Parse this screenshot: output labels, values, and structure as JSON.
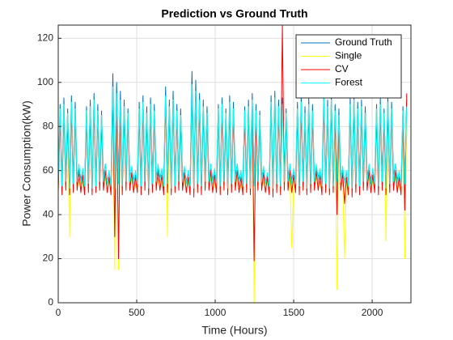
{
  "chart_data": {
    "type": "line",
    "title": "Prediction vs Ground Truth",
    "x_label": "Time (Hours)",
    "y_label": "Power Consumption(kW)",
    "xlim": [
      0,
      2247
    ],
    "ylim": [
      0,
      126
    ],
    "xticks": [
      0,
      500,
      1000,
      1500,
      2000
    ],
    "yticks": [
      0,
      20,
      40,
      60,
      80,
      100,
      120
    ],
    "grid": true,
    "legend": "northeast",
    "x": [
      0,
      12,
      24,
      36,
      48,
      60,
      72,
      84,
      96,
      108,
      120,
      132,
      144,
      156,
      168,
      180,
      192,
      204,
      216,
      228,
      240,
      252,
      264,
      276,
      288,
      300,
      312,
      324,
      336,
      348,
      360,
      372,
      384,
      396,
      408,
      420,
      432,
      444,
      456,
      468,
      480,
      492,
      504,
      516,
      528,
      540,
      552,
      564,
      576,
      588,
      600,
      612,
      624,
      636,
      648,
      660,
      672,
      684,
      696,
      708,
      720,
      732,
      744,
      756,
      768,
      780,
      792,
      804,
      816,
      828,
      840,
      852,
      864,
      876,
      888,
      900,
      912,
      924,
      936,
      948,
      960,
      972,
      984,
      996,
      1008,
      1020,
      1032,
      1044,
      1056,
      1068,
      1080,
      1092,
      1104,
      1116,
      1128,
      1140,
      1152,
      1164,
      1176,
      1188,
      1200,
      1212,
      1224,
      1236,
      1248,
      1260,
      1272,
      1284,
      1296,
      1308,
      1320,
      1332,
      1344,
      1356,
      1368,
      1380,
      1392,
      1404,
      1416,
      1428,
      1440,
      1452,
      1464,
      1476,
      1488,
      1500,
      1512,
      1524,
      1536,
      1548,
      1560,
      1572,
      1584,
      1596,
      1608,
      1620,
      1632,
      1644,
      1656,
      1668,
      1680,
      1692,
      1704,
      1716,
      1728,
      1740,
      1752,
      1764,
      1776,
      1788,
      1800,
      1812,
      1824,
      1836,
      1848,
      1860,
      1872,
      1884,
      1896,
      1908,
      1920,
      1932,
      1944,
      1956,
      1968,
      1980,
      1992,
      2004,
      2016,
      2028,
      2040,
      2052,
      2064,
      2076,
      2088,
      2100,
      2112,
      2124,
      2136,
      2148,
      2160,
      2172,
      2184,
      2196,
      2208,
      2220
    ],
    "series": [
      {
        "name": "Ground Truth",
        "color": "#0072bd",
        "values": [
          55,
          90,
          54,
          93,
          56,
          88,
          53,
          94,
          55,
          91,
          57,
          62,
          56,
          60,
          54,
          89,
          55,
          92,
          53,
          95,
          54,
          90,
          56,
          87,
          57,
          63,
          55,
          59,
          54,
          104,
          53,
          100,
          55,
          96,
          54,
          92,
          56,
          88,
          57,
          61,
          56,
          58,
          55,
          91,
          54,
          94,
          56,
          89,
          53,
          93,
          55,
          90,
          56,
          62,
          57,
          60,
          54,
          98,
          55,
          92,
          53,
          96,
          54,
          90,
          56,
          88,
          57,
          61,
          55,
          59,
          54,
          105,
          53,
          101,
          55,
          95,
          54,
          92,
          56,
          89,
          57,
          62,
          56,
          60,
          55,
          90,
          54,
          93,
          56,
          88,
          53,
          94,
          55,
          91,
          57,
          63,
          56,
          59,
          54,
          89,
          55,
          92,
          53,
          95,
          54,
          90,
          56,
          87,
          57,
          61,
          55,
          58,
          54,
          94,
          53,
          96,
          55,
          92,
          54,
          93,
          56,
          88,
          57,
          62,
          56,
          60,
          55,
          91,
          54,
          94,
          56,
          89,
          53,
          93,
          55,
          90,
          56,
          62,
          57,
          60,
          54,
          96,
          55,
          92,
          53,
          95,
          54,
          90,
          56,
          88,
          57,
          61,
          55,
          59,
          54,
          93,
          53,
          95,
          55,
          91,
          54,
          92,
          56,
          89,
          57,
          62,
          56,
          60,
          55,
          90,
          54,
          93,
          56,
          88,
          53,
          94,
          55,
          91,
          57,
          63,
          56,
          59,
          54,
          89,
          55,
          92
        ]
      },
      {
        "name": "Single",
        "color": "#ffff00",
        "values": [
          51,
          88,
          50,
          90,
          52,
          86,
          30,
          91,
          51,
          88,
          52,
          56,
          51,
          55,
          50,
          87,
          51,
          89,
          50,
          92,
          51,
          87,
          52,
          85,
          52,
          57,
          51,
          55,
          50,
          92,
          15,
          91,
          15,
          90,
          50,
          89,
          52,
          86,
          52,
          56,
          51,
          54,
          51,
          88,
          50,
          91,
          52,
          86,
          50,
          90,
          51,
          87,
          52,
          57,
          52,
          55,
          50,
          93,
          30,
          89,
          50,
          92,
          51,
          87,
          52,
          85,
          52,
          56,
          51,
          55,
          50,
          92,
          50,
          93,
          51,
          91,
          50,
          89,
          52,
          86,
          52,
          57,
          51,
          55,
          51,
          88,
          50,
          90,
          52,
          86,
          50,
          91,
          51,
          88,
          52,
          57,
          51,
          54,
          50,
          87,
          51,
          89,
          50,
          92,
          0,
          87,
          52,
          85,
          52,
          56,
          51,
          55,
          50,
          91,
          50,
          92,
          51,
          89,
          50,
          90,
          52,
          86,
          52,
          57,
          25,
          55,
          51,
          88,
          50,
          91,
          52,
          86,
          50,
          90,
          51,
          87,
          52,
          57,
          52,
          55,
          50,
          92,
          51,
          89,
          50,
          92,
          51,
          87,
          6,
          85,
          52,
          56,
          20,
          55,
          50,
          90,
          50,
          92,
          51,
          88,
          50,
          89,
          52,
          86,
          52,
          57,
          51,
          55,
          51,
          88,
          50,
          90,
          52,
          86,
          28,
          91,
          51,
          88,
          52,
          57,
          51,
          54,
          50,
          87,
          20,
          89
        ]
      },
      {
        "name": "CV",
        "color": "#ff0000",
        "values": [
          50,
          85,
          49,
          87,
          51,
          83,
          49,
          88,
          50,
          86,
          51,
          60,
          50,
          58,
          49,
          84,
          50,
          86,
          49,
          89,
          50,
          85,
          51,
          82,
          51,
          60,
          50,
          57,
          49,
          95,
          30,
          93,
          20,
          90,
          49,
          87,
          51,
          84,
          51,
          59,
          50,
          57,
          50,
          85,
          49,
          88,
          51,
          83,
          49,
          87,
          50,
          85,
          51,
          60,
          51,
          58,
          49,
          92,
          50,
          87,
          49,
          90,
          50,
          85,
          51,
          82,
          51,
          59,
          50,
          57,
          49,
          96,
          48,
          95,
          50,
          90,
          49,
          87,
          51,
          84,
          51,
          60,
          50,
          58,
          50,
          85,
          49,
          87,
          51,
          83,
          49,
          88,
          50,
          86,
          51,
          60,
          50,
          57,
          49,
          84,
          50,
          86,
          49,
          89,
          19,
          85,
          51,
          82,
          51,
          59,
          50,
          57,
          49,
          90,
          48,
          92,
          50,
          88,
          49,
          126,
          51,
          84,
          51,
          60,
          50,
          58,
          50,
          85,
          49,
          88,
          51,
          83,
          49,
          87,
          50,
          85,
          51,
          60,
          51,
          58,
          49,
          90,
          50,
          87,
          49,
          90,
          50,
          85,
          40,
          82,
          51,
          59,
          45,
          57,
          49,
          88,
          48,
          90,
          50,
          86,
          49,
          87,
          51,
          84,
          51,
          60,
          50,
          58,
          50,
          85,
          49,
          87,
          51,
          83,
          49,
          88,
          50,
          86,
          51,
          60,
          50,
          57,
          49,
          84,
          42,
          95
        ]
      },
      {
        "name": "Forest",
        "color": "#00ffff",
        "values": [
          54,
          88,
          53,
          90,
          55,
          86,
          52,
          91,
          54,
          88,
          55,
          63,
          54,
          61,
          53,
          87,
          54,
          89,
          52,
          92,
          53,
          87,
          55,
          85,
          55,
          63,
          54,
          60,
          53,
          98,
          52,
          95,
          54,
          92,
          53,
          89,
          55,
          86,
          55,
          62,
          54,
          60,
          54,
          88,
          53,
          91,
          55,
          86,
          52,
          90,
          54,
          87,
          55,
          63,
          55,
          61,
          53,
          94,
          54,
          89,
          52,
          92,
          53,
          87,
          55,
          85,
          55,
          62,
          54,
          60,
          53,
          99,
          52,
          96,
          54,
          92,
          53,
          89,
          55,
          86,
          55,
          63,
          54,
          61,
          54,
          88,
          53,
          90,
          55,
          86,
          52,
          91,
          54,
          88,
          55,
          63,
          54,
          60,
          53,
          87,
          54,
          89,
          52,
          92,
          53,
          87,
          55,
          85,
          55,
          62,
          54,
          59,
          53,
          91,
          52,
          93,
          54,
          89,
          53,
          90,
          55,
          86,
          55,
          63,
          54,
          61,
          54,
          88,
          53,
          91,
          55,
          86,
          52,
          90,
          54,
          87,
          55,
          63,
          55,
          61,
          53,
          93,
          54,
          89,
          52,
          92,
          53,
          87,
          55,
          85,
          55,
          62,
          54,
          60,
          53,
          90,
          52,
          92,
          54,
          88,
          53,
          89,
          55,
          86,
          55,
          63,
          54,
          61,
          54,
          88,
          53,
          90,
          55,
          86,
          52,
          91,
          54,
          88,
          55,
          63,
          54,
          60,
          53,
          87,
          54,
          89
        ]
      }
    ]
  }
}
